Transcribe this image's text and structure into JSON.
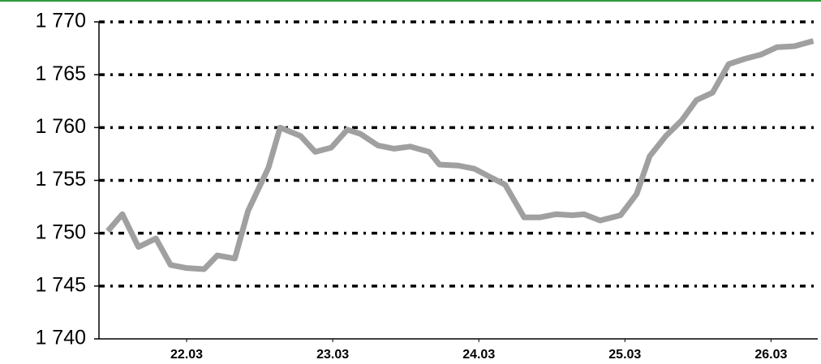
{
  "chart_data": {
    "type": "line",
    "x": [
      21.46,
      21.56,
      21.67,
      21.79,
      21.89,
      22.0,
      22.12,
      22.21,
      22.33,
      22.42,
      22.56,
      22.64,
      22.78,
      22.88,
      22.99,
      23.1,
      23.19,
      23.31,
      23.42,
      23.53,
      23.66,
      23.73,
      23.86,
      23.97,
      24.08,
      24.18,
      24.31,
      24.42,
      24.53,
      24.64,
      24.72,
      24.83,
      24.97,
      25.08,
      25.17,
      25.28,
      25.39,
      25.49,
      25.6,
      25.71,
      25.82,
      25.93,
      26.04,
      26.16,
      26.29
    ],
    "series": [
      {
        "color": "#a0a0a0",
        "values": [
          1750.2,
          1751.8,
          1748.7,
          1749.5,
          1747.0,
          1746.7,
          1746.6,
          1747.9,
          1747.6,
          1752.1,
          1756.2,
          1760.0,
          1759.2,
          1757.7,
          1758.1,
          1759.8,
          1759.4,
          1758.3,
          1758.0,
          1758.2,
          1757.7,
          1756.5,
          1756.4,
          1756.1,
          1755.3,
          1754.6,
          1751.5,
          1751.5,
          1751.8,
          1751.7,
          1751.8,
          1751.2,
          1751.7,
          1753.7,
          1757.3,
          1759.2,
          1760.7,
          1762.6,
          1763.3,
          1766.0,
          1766.5,
          1766.9,
          1767.6,
          1767.7,
          1768.2
        ]
      }
    ],
    "xlim": [
      21.4,
      26.32
    ],
    "xticks": [
      {
        "value": 22,
        "label": "22.03"
      },
      {
        "value": 23,
        "label": "23.03"
      },
      {
        "value": 24,
        "label": "24.03"
      },
      {
        "value": 25,
        "label": "25.03"
      },
      {
        "value": 26,
        "label": "26.03"
      }
    ],
    "ylim": [
      1740,
      1770
    ],
    "yticks": [
      {
        "value": 1740,
        "label": "1 740"
      },
      {
        "value": 1745,
        "label": "1 745"
      },
      {
        "value": 1750,
        "label": "1 750"
      },
      {
        "value": 1755,
        "label": "1 755"
      },
      {
        "value": 1760,
        "label": "1 760"
      },
      {
        "value": 1765,
        "label": "1 765"
      },
      {
        "value": 1770,
        "label": "1 770"
      }
    ],
    "grid": true
  }
}
